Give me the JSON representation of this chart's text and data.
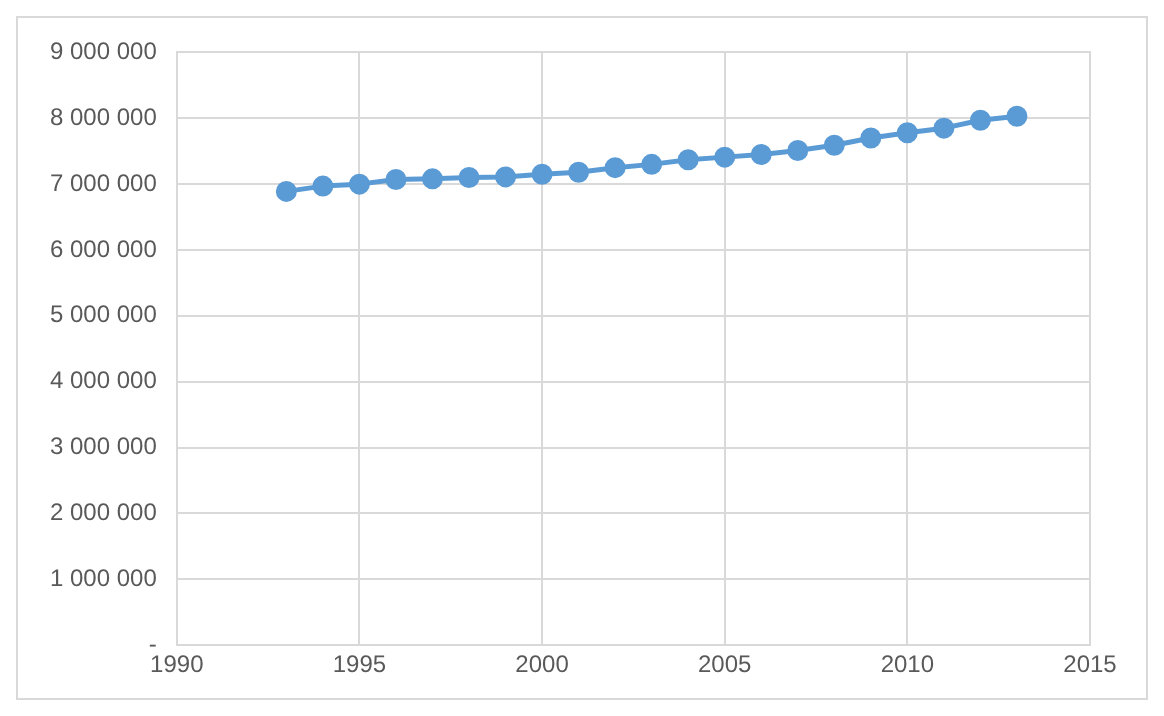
{
  "chart_data": {
    "type": "line",
    "x": [
      1993,
      1994,
      1995,
      1996,
      1997,
      1998,
      1999,
      2000,
      2001,
      2002,
      2003,
      2004,
      2005,
      2006,
      2007,
      2008,
      2009,
      2010,
      2011,
      2012,
      2013
    ],
    "series": [
      {
        "color": "#5b9bd5",
        "values": [
          6890000,
          6970000,
          7000000,
          7070000,
          7080000,
          7100000,
          7110000,
          7150000,
          7180000,
          7250000,
          7300000,
          7370000,
          7410000,
          7450000,
          7510000,
          7590000,
          7700000,
          7780000,
          7850000,
          7970000,
          8030000
        ]
      }
    ],
    "xlim": [
      1990,
      2015
    ],
    "xticks": [
      1990,
      1995,
      2000,
      2005,
      2010,
      2015
    ],
    "ylim": [
      0,
      9000000
    ],
    "yticks": [
      {
        "value": 0,
        "label": "-"
      },
      {
        "value": 1000000,
        "label": "1 000 000"
      },
      {
        "value": 2000000,
        "label": "2 000 000"
      },
      {
        "value": 3000000,
        "label": "3 000 000"
      },
      {
        "value": 4000000,
        "label": "4 000 000"
      },
      {
        "value": 5000000,
        "label": "5 000 000"
      },
      {
        "value": 6000000,
        "label": "6 000 000"
      },
      {
        "value": 7000000,
        "label": "7 000 000"
      },
      {
        "value": 8000000,
        "label": "8 000 000"
      },
      {
        "value": 9000000,
        "label": "9 000 000"
      }
    ],
    "grid": true,
    "marker": "circle",
    "line_style": "solid"
  }
}
